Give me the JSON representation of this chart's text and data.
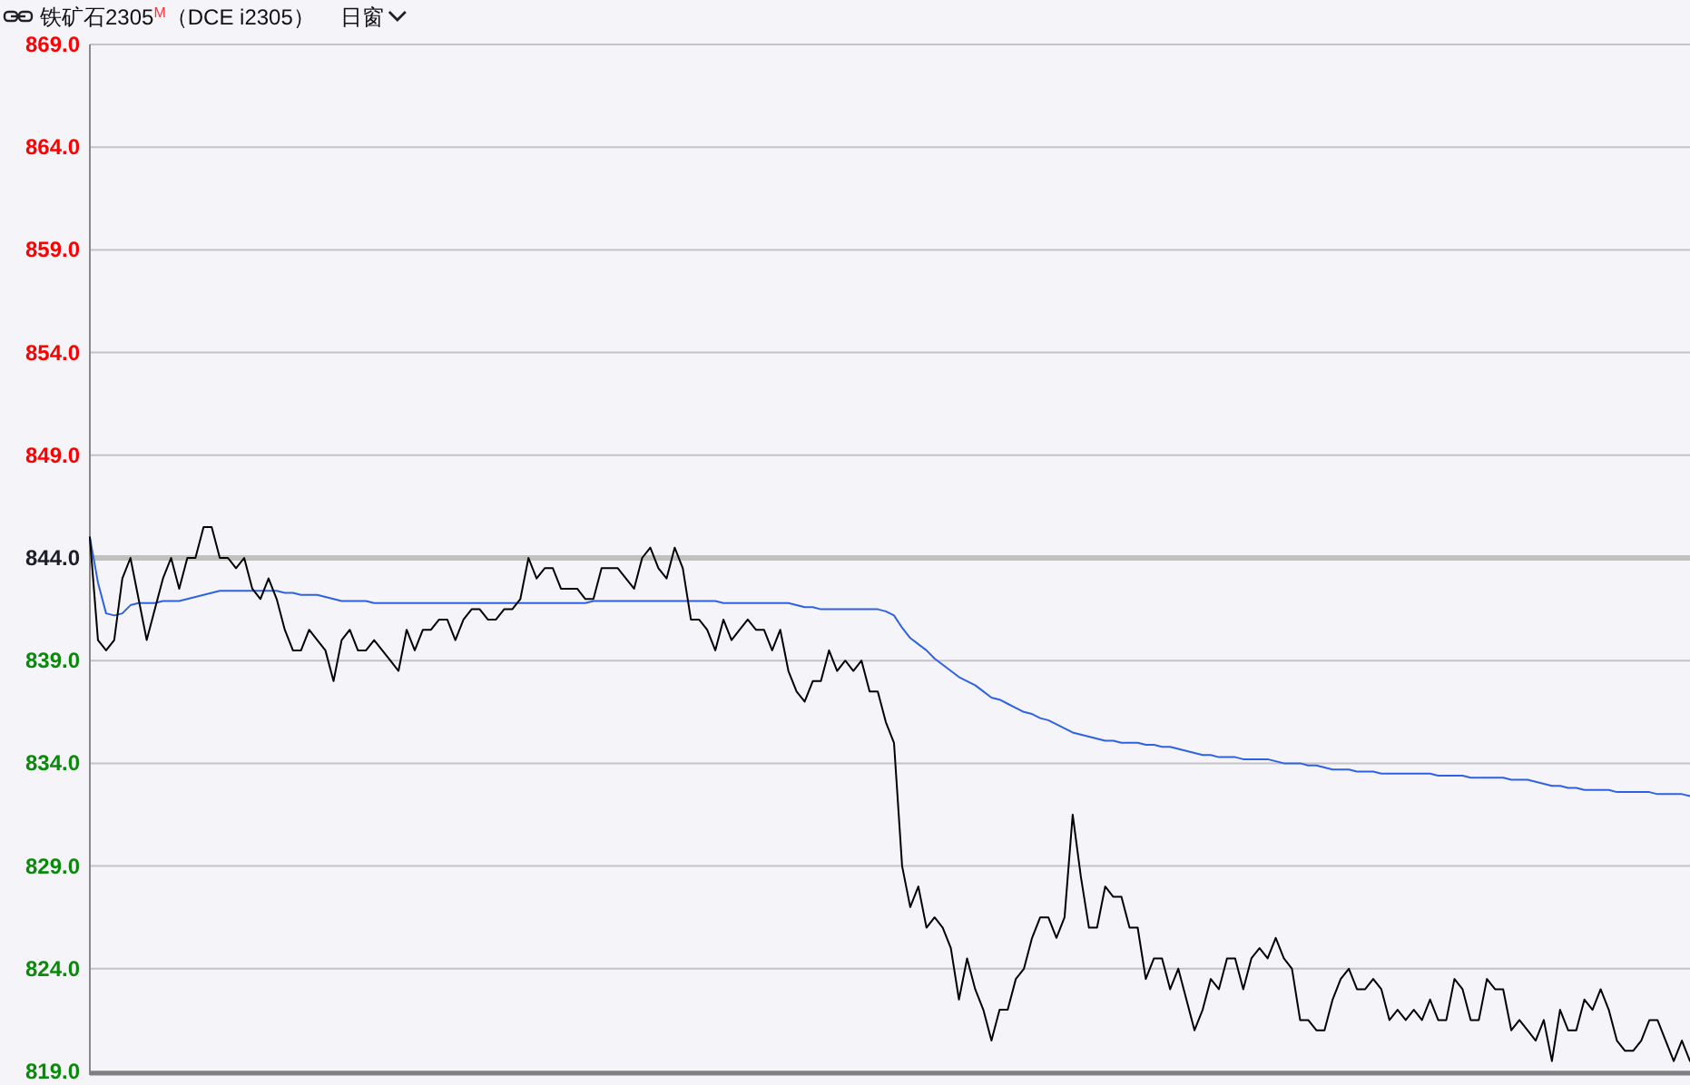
{
  "chart_data": {
    "type": "line",
    "title": "铁矿石2305$^{M}$（DCE i2305）",
    "subtitle": "日窗",
    "categories": [
      null,
      null,
      null,
      null,
      null,
      null,
      null,
      null,
      null,
      null,
      null,
      null,
      null,
      null,
      null,
      null,
      null,
      null,
      null,
      null,
      null,
      null,
      null,
      null,
      null,
      null,
      null,
      null,
      null,
      null,
      null,
      null,
      null,
      null,
      null,
      null,
      null,
      null,
      null,
      null,
      null,
      null,
      null,
      null,
      null,
      null,
      null,
      null,
      null,
      null,
      null,
      null,
      null,
      null,
      null,
      null,
      null,
      null,
      null,
      null,
      null,
      null,
      null,
      null,
      null,
      null,
      null,
      null,
      null,
      null,
      null,
      null,
      null,
      null,
      null,
      null,
      null,
      null,
      null,
      null,
      null,
      null,
      null,
      null,
      null,
      null,
      null,
      null,
      null,
      null,
      null,
      null,
      null,
      null,
      null,
      null,
      null,
      null,
      null,
      null,
      null,
      null,
      null,
      null,
      null,
      null,
      null,
      null,
      null,
      null,
      null,
      null,
      null,
      null,
      null,
      null,
      null,
      null,
      null,
      null,
      null,
      null,
      null,
      null,
      null,
      null,
      null,
      null,
      null,
      null,
      null,
      null,
      null,
      null,
      null,
      null,
      null,
      null,
      null,
      null,
      null,
      null,
      null,
      null,
      null,
      null,
      null,
      null,
      null,
      null,
      null,
      null,
      null,
      null,
      null,
      null,
      null,
      null,
      null,
      null,
      null,
      null,
      null,
      null,
      null,
      null,
      null,
      null,
      null,
      null,
      null,
      null,
      null,
      null,
      null,
      null,
      null,
      null,
      null,
      null,
      null,
      null,
      null,
      null,
      null,
      null,
      null,
      null,
      null,
      null,
      null,
      null,
      null,
      null,
      null,
      null,
      null,
      null
    ],
    "series": [
      {
        "color": "#2f62e3",
        "values": [
          845.0,
          842.8,
          841.3,
          841.2,
          841.3,
          841.7,
          841.8,
          841.8,
          841.8,
          841.9,
          841.9,
          841.9,
          842.0,
          842.1,
          842.2,
          842.3,
          842.4,
          842.4,
          842.4,
          842.4,
          842.4,
          842.4,
          842.4,
          842.4,
          842.3,
          842.3,
          842.2,
          842.2,
          842.2,
          842.1,
          842.0,
          841.9,
          841.9,
          841.9,
          841.9,
          841.8,
          841.8,
          841.8,
          841.8,
          841.8,
          841.8,
          841.8,
          841.8,
          841.8,
          841.8,
          841.8,
          841.8,
          841.8,
          841.8,
          841.8,
          841.8,
          841.8,
          841.8,
          841.8,
          841.8,
          841.8,
          841.8,
          841.8,
          841.8,
          841.8,
          841.8,
          841.8,
          841.9,
          841.9,
          841.9,
          841.9,
          841.9,
          841.9,
          841.9,
          841.9,
          841.9,
          841.9,
          841.9,
          841.9,
          841.9,
          841.9,
          841.9,
          841.9,
          841.8,
          841.8,
          841.8,
          841.8,
          841.8,
          841.8,
          841.8,
          841.8,
          841.8,
          841.7,
          841.6,
          841.6,
          841.5,
          841.5,
          841.5,
          841.5,
          841.5,
          841.5,
          841.5,
          841.5,
          841.4,
          841.2,
          840.6,
          840.1,
          839.8,
          839.5,
          839.1,
          838.8,
          838.5,
          838.2,
          838.0,
          837.8,
          837.5,
          837.2,
          837.1,
          836.9,
          836.7,
          836.5,
          836.4,
          836.2,
          836.1,
          835.9,
          835.7,
          835.5,
          835.4,
          835.3,
          835.2,
          835.1,
          835.1,
          835.0,
          835.0,
          835.0,
          834.9,
          834.9,
          834.8,
          834.8,
          834.7,
          834.6,
          834.5,
          834.4,
          834.4,
          834.3,
          834.3,
          834.3,
          834.2,
          834.2,
          834.2,
          834.2,
          834.1,
          834.0,
          834.0,
          834.0,
          833.9,
          833.9,
          833.8,
          833.7,
          833.7,
          833.7,
          833.6,
          833.6,
          833.6,
          833.5,
          833.5,
          833.5,
          833.5,
          833.5,
          833.5,
          833.5,
          833.4,
          833.4,
          833.4,
          833.4,
          833.3,
          833.3,
          833.3,
          833.3,
          833.3,
          833.2,
          833.2,
          833.2,
          833.1,
          833.0,
          832.9,
          832.9,
          832.8,
          832.8,
          832.7,
          832.7,
          832.7,
          832.7,
          832.6,
          832.6,
          832.6,
          832.6,
          832.6,
          832.5,
          832.5,
          832.5,
          832.5,
          832.4
        ]
      },
      {
        "color": "#000000",
        "values": [
          845.0,
          840.0,
          839.5,
          840.0,
          843.0,
          844.0,
          842.0,
          840.0,
          841.5,
          843.0,
          844.0,
          842.5,
          844.0,
          844.0,
          845.5,
          845.5,
          844.0,
          844.0,
          843.5,
          844.0,
          842.5,
          842.0,
          843.0,
          842.0,
          840.5,
          839.5,
          839.5,
          840.5,
          840.0,
          839.5,
          838.0,
          840.0,
          840.5,
          839.5,
          839.5,
          840.0,
          839.5,
          839.0,
          838.5,
          840.5,
          839.5,
          840.5,
          840.5,
          841.0,
          841.0,
          840.0,
          841.0,
          841.5,
          841.5,
          841.0,
          841.0,
          841.5,
          841.5,
          842.0,
          844.0,
          843.0,
          843.5,
          843.5,
          842.5,
          842.5,
          842.5,
          842.0,
          842.0,
          843.5,
          843.5,
          843.5,
          843.0,
          842.5,
          844.0,
          844.5,
          843.5,
          843.0,
          844.5,
          843.5,
          841.0,
          841.0,
          840.5,
          839.5,
          841.0,
          840.0,
          840.5,
          841.0,
          840.5,
          840.5,
          839.5,
          840.5,
          838.5,
          837.5,
          837.0,
          838.0,
          838.0,
          839.5,
          838.5,
          839.0,
          838.5,
          839.0,
          837.5,
          837.5,
          836.0,
          835.0,
          829.0,
          827.0,
          828.0,
          826.0,
          826.5,
          826.0,
          825.0,
          822.5,
          824.5,
          823.0,
          822.0,
          820.5,
          822.0,
          822.0,
          823.5,
          824.0,
          825.5,
          826.5,
          826.5,
          825.5,
          826.5,
          831.5,
          828.5,
          826.0,
          826.0,
          828.0,
          827.5,
          827.5,
          826.0,
          826.0,
          823.5,
          824.5,
          824.5,
          823.0,
          824.0,
          822.5,
          821.0,
          822.0,
          823.5,
          823.0,
          824.5,
          824.5,
          823.0,
          824.5,
          825.0,
          824.5,
          825.5,
          824.5,
          824.0,
          821.5,
          821.5,
          821.0,
          821.0,
          822.5,
          823.5,
          824.0,
          823.0,
          823.0,
          823.5,
          823.0,
          821.5,
          822.0,
          821.5,
          822.0,
          821.5,
          822.5,
          821.5,
          821.5,
          823.5,
          823.0,
          821.5,
          821.5,
          823.5,
          823.0,
          823.0,
          821.0,
          821.5,
          821.0,
          820.5,
          821.5,
          819.5,
          822.0,
          821.0,
          821.0,
          822.5,
          822.0,
          823.0,
          822.0,
          820.5,
          820.0,
          820.0,
          820.5,
          821.5,
          821.5,
          820.5,
          819.5,
          820.5,
          819.5
        ]
      }
    ],
    "ylim": [
      819,
      869
    ],
    "yticks": [
      {
        "value": 819,
        "label": "819.0"
      },
      {
        "value": 824,
        "label": "824.0"
      },
      {
        "value": 829,
        "label": "829.0"
      },
      {
        "value": 834,
        "label": "834.0"
      },
      {
        "value": 839,
        "label": "839.0"
      },
      {
        "value": 844,
        "label": "844.0"
      },
      {
        "value": 849,
        "label": "849.0"
      },
      {
        "value": 854,
        "label": "854.0"
      },
      {
        "value": 859,
        "label": "859.0"
      },
      {
        "value": 864,
        "label": "864.0"
      },
      {
        "value": 869,
        "label": "869.0"
      }
    ],
    "grid": "y",
    "tick_labels": "y",
    "ref_lines": [
      {
        "axis": "y",
        "value": 844,
        "color": "#c0c0c0"
      }
    ]
  }
}
